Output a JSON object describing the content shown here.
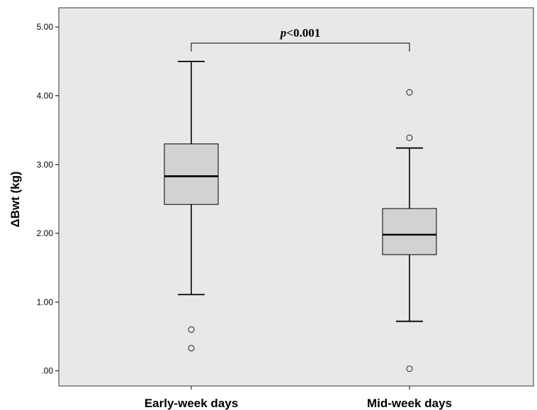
{
  "chart_data": {
    "type": "boxplot",
    "title": "",
    "xlabel": "",
    "ylabel": "ΔBwt (kg)",
    "ylim": [
      -0.22,
      5.28
    ],
    "y_ticks": [
      0,
      1,
      2,
      3,
      4,
      5
    ],
    "y_tick_labels": [
      ".00",
      "1.00",
      "2.00",
      "3.00",
      "4.00",
      "5.00"
    ],
    "categories": [
      "Early-week days",
      "Mid-week days"
    ],
    "boxes": [
      {
        "category": "Early-week days",
        "whisker_low": 1.11,
        "q1": 2.42,
        "median": 2.83,
        "q3": 3.3,
        "whisker_high": 4.5,
        "outliers": [
          0.6,
          0.33
        ]
      },
      {
        "category": "Mid-week days",
        "whisker_low": 0.72,
        "q1": 1.69,
        "median": 1.98,
        "q3": 2.36,
        "whisker_high": 3.24,
        "outliers": [
          4.05,
          3.39,
          0.03
        ]
      }
    ],
    "annotation": {
      "italic_part": "p",
      "rest": "<0.001"
    },
    "colors": {
      "plot_background": "#e8e8e8",
      "box_fill": "#d2d2d2",
      "stroke": "#000000"
    },
    "grid": false
  }
}
